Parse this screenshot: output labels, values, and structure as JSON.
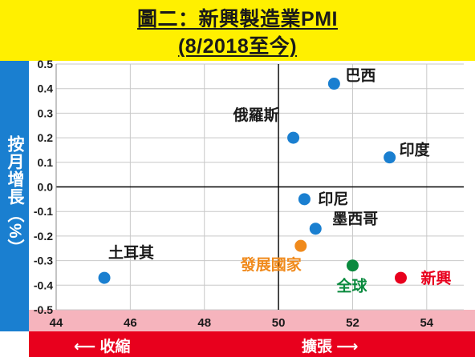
{
  "title": {
    "line1": "圖二：新興製造業PMI",
    "line2": "(8/2018至今)"
  },
  "ylabel": "按月增長（%）",
  "bottom": {
    "contract": "⟵ 收縮",
    "expand": "擴張 ⟶"
  },
  "colors": {
    "title_band": "#fff000",
    "ylabel_band": "#1a7fd0",
    "bottom_band": "#e8001d",
    "country_point": "#1a7fd0",
    "developing_point": "#f08a1c",
    "world_point": "#0a8a3e",
    "emerging_point": "#e8001d"
  },
  "chart_data": {
    "type": "scatter",
    "title": "圖二：新興製造業PMI (8/2018至今)",
    "xlabel": "",
    "ylabel": "按月增長（%）",
    "xlim": [
      44,
      55
    ],
    "ylim": [
      -0.5,
      0.5
    ],
    "xticks": [
      "44",
      "46",
      "48",
      "50",
      "52",
      "54"
    ],
    "yticks": [
      "-0.5",
      "-0.4",
      "-0.3",
      "-0.2",
      "-0.1",
      "0.0",
      "0.1",
      "0.2",
      "0.3",
      "0.4",
      "0.5"
    ],
    "reference_lines": {
      "x": 50,
      "y": 0
    },
    "grid": true,
    "points": [
      {
        "label": "巴西",
        "x": 51.5,
        "y": 0.42,
        "color": "#1a7fd0"
      },
      {
        "label": "俄羅斯",
        "x": 50.4,
        "y": 0.2,
        "color": "#1a7fd0"
      },
      {
        "label": "印度",
        "x": 53.0,
        "y": 0.12,
        "color": "#1a7fd0"
      },
      {
        "label": "印尼",
        "x": 50.7,
        "y": -0.05,
        "color": "#1a7fd0"
      },
      {
        "label": "墨西哥",
        "x": 51.0,
        "y": -0.17,
        "color": "#1a7fd0"
      },
      {
        "label": "發展國家",
        "x": 50.6,
        "y": -0.24,
        "color": "#f08a1c"
      },
      {
        "label": "全球",
        "x": 52.0,
        "y": -0.32,
        "color": "#0a8a3e"
      },
      {
        "label": "新興",
        "x": 53.3,
        "y": -0.37,
        "color": "#e8001d"
      },
      {
        "label": "土耳其",
        "x": 45.3,
        "y": -0.37,
        "color": "#1a7fd0"
      }
    ]
  }
}
